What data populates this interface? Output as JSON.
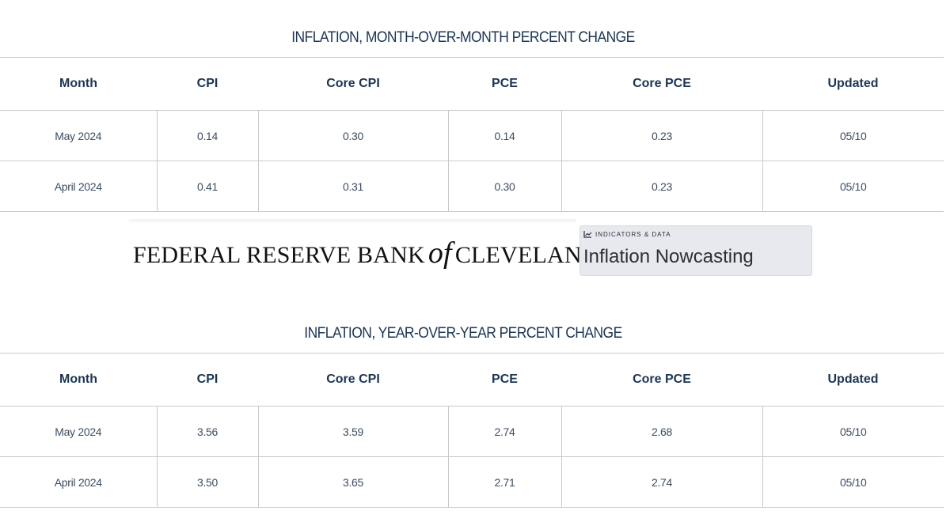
{
  "mom": {
    "title": "INFLATION, MONTH-OVER-MONTH PERCENT CHANGE",
    "headers": [
      "Month",
      "CPI",
      "Core CPI",
      "PCE",
      "Core PCE",
      "Updated"
    ],
    "rows": [
      [
        "May 2024",
        "0.14",
        "0.30",
        "0.14",
        "0.23",
        "05/10"
      ],
      [
        "April 2024",
        "0.41",
        "0.31",
        "0.30",
        "0.23",
        "05/10"
      ]
    ]
  },
  "logo": {
    "bank_part1": "FEDERAL RESERVE BANK",
    "bank_of": "of",
    "bank_part2": "CLEVELAND",
    "badge_kicker": "INDICATORS & DATA",
    "badge_kicker_icon": "line-chart-icon",
    "badge_title": "Inflation Nowcasting"
  },
  "yoy": {
    "title": "INFLATION, YEAR-OVER-YEAR PERCENT CHANGE",
    "headers": [
      "Month",
      "CPI",
      "Core CPI",
      "PCE",
      "Core PCE",
      "Updated"
    ],
    "rows": [
      [
        "May 2024",
        "3.56",
        "3.59",
        "2.74",
        "2.68",
        "05/10"
      ],
      [
        "April 2024",
        "3.50",
        "3.65",
        "2.71",
        "2.74",
        "05/10"
      ]
    ]
  }
}
